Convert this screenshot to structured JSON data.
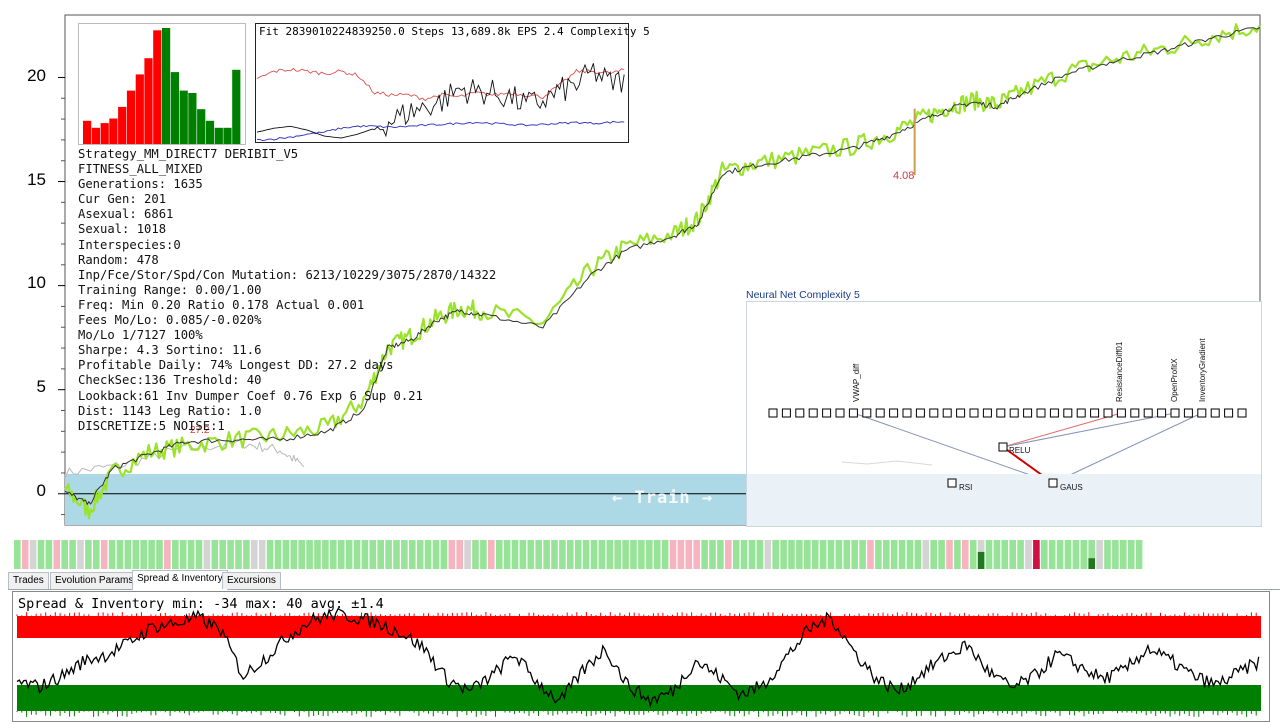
{
  "chart_data": [
    {
      "type": "line",
      "ylim": [
        -1.5,
        23
      ],
      "yticks": [
        "20",
        "15",
        "10",
        "5",
        "0"
      ],
      "ytick_values": [
        20,
        15,
        10,
        5,
        0
      ],
      "series": [
        {
          "color": "#9be22c",
          "x": [
            0,
            2,
            4,
            7,
            10,
            14,
            18,
            22,
            25,
            27,
            29,
            31,
            33,
            35,
            40,
            44,
            47,
            51,
            53,
            55,
            58,
            62,
            66,
            69,
            72,
            74,
            76,
            78,
            80,
            84,
            88,
            92,
            96,
            100
          ],
          "y": [
            0.2,
            -0.8,
            1.0,
            2.0,
            2.3,
            2.6,
            2.8,
            3.2,
            4.5,
            7.0,
            7.6,
            8.4,
            8.9,
            8.8,
            8.2,
            10.8,
            11.9,
            12.5,
            13.2,
            15.5,
            15.9,
            16.3,
            16.7,
            17.3,
            18.1,
            18.6,
            18.9,
            18.7,
            19.3,
            20.3,
            20.9,
            21.4,
            22.0,
            22.5
          ]
        },
        {
          "color": "#333333",
          "x": [
            0,
            2,
            4,
            7,
            10,
            14,
            18,
            22,
            25,
            27,
            29,
            31,
            33,
            35,
            40,
            44,
            47,
            51,
            53,
            55,
            58,
            62,
            66,
            69,
            72,
            74,
            76,
            78,
            80,
            84,
            88,
            92,
            96,
            100
          ],
          "y": [
            0.1,
            -0.5,
            1.2,
            1.9,
            2.5,
            2.6,
            2.6,
            3.0,
            4.0,
            7.0,
            7.4,
            8.3,
            8.8,
            8.6,
            8.0,
            10.5,
            11.7,
            12.4,
            13.0,
            15.4,
            15.8,
            16.2,
            16.6,
            17.2,
            18.0,
            18.5,
            18.8,
            18.6,
            19.2,
            20.2,
            20.8,
            21.3,
            21.9,
            22.4
          ]
        },
        {
          "color": "#b8b8b8",
          "x": [
            0,
            5,
            10,
            15,
            18,
            20
          ],
          "y": [
            1.0,
            1.4,
            2.2,
            2.4,
            2.1,
            1.3
          ]
        }
      ]
    },
    {
      "type": "bar",
      "values": [
        0.2,
        0.14,
        0.18,
        0.22,
        0.32,
        0.46,
        0.6,
        0.74,
        0.98,
        1.0,
        0.62,
        0.46,
        0.44,
        0.3,
        0.2,
        0.14,
        0.14,
        0.64
      ],
      "colors": [
        "#ff0000",
        "#ff0000",
        "#ff0000",
        "#ff0000",
        "#ff0000",
        "#ff0000",
        "#ff0000",
        "#ff0000",
        "#ff0000",
        "#008000",
        "#008000",
        "#008000",
        "#008000",
        "#008000",
        "#008000",
        "#008000",
        "#008000",
        "#008000"
      ]
    },
    {
      "type": "line",
      "title": "Fit 2839010224839250.0 Steps 13,689.8k EPS 2.4 Complexity 5",
      "series": [
        {
          "color": "#d9534f",
          "y": [
            0.62,
            0.7,
            0.72,
            0.7,
            0.68,
            0.7,
            0.66,
            0.48,
            0.46,
            0.46,
            0.42,
            0.46,
            0.44,
            0.48,
            0.46,
            0.48,
            0.46,
            0.44,
            0.56,
            0.7,
            0.7,
            0.68,
            0.72
          ]
        },
        {
          "color": "#111111",
          "y": [
            0.08,
            0.12,
            0.14,
            0.1,
            0.04,
            0.02,
            0.06,
            0.12,
            0.2,
            0.28,
            0.34,
            0.4,
            0.52,
            0.5,
            0.48,
            0.44,
            0.36,
            0.4,
            0.5,
            0.56,
            0.7,
            0.58,
            0.62
          ]
        },
        {
          "color": "#2b2bbf",
          "y": [
            0.0,
            0.01,
            0.03,
            0.06,
            0.08,
            0.12,
            0.14,
            0.14,
            0.13,
            0.14,
            0.15,
            0.16,
            0.17,
            0.18,
            0.17,
            0.16,
            0.15,
            0.16,
            0.17,
            0.18,
            0.17,
            0.18,
            0.19
          ]
        }
      ]
    },
    {
      "type": "line",
      "title": "Spread & Inventory min: -34 max: 40 avg: ±1.4",
      "ylim": [
        -34,
        40
      ],
      "series": [
        {
          "color": "#000000",
          "y": [
            -12,
            -15,
            -8,
            2,
            6,
            14,
            24,
            26,
            30,
            22,
            -8,
            4,
            18,
            28,
            32,
            30,
            26,
            20,
            10,
            -10,
            -18,
            -8,
            6,
            -12,
            -25,
            -5,
            10,
            -14,
            -24,
            -18,
            2,
            -8,
            -20,
            -14,
            4,
            22,
            30,
            8,
            -10,
            -18,
            -6,
            4,
            12,
            -6,
            -16,
            -8,
            6,
            -2,
            -10,
            -4,
            10,
            2,
            -8,
            -14,
            -6,
            2
          ]
        }
      ]
    }
  ],
  "annotations": {
    "spike_value": "4.08",
    "marker_value": "27.2"
  },
  "train_label": "← Train →",
  "stats": [
    "Strategy_MM_DIRECT7 DERIBIT_V5",
    "FITNESS_ALL_MIXED",
    "Generations: 1635",
    "Cur Gen: 201",
    "Asexual: 6861",
    "Sexual: 1018",
    "Interspecies:0",
    "Random: 478",
    "Inp/Fce/Stor/Spd/Con Mutation: 6213/10229/3075/2870/14322",
    "Training Range: 0.00/1.00",
    "Freq: Min 0.20 Ratio 0.178 Actual 0.001",
    "Fees Mo/Lo: 0.085/-0.020%",
    "Mo/Lo 1/7127 100%",
    "Sharpe: 4.3 Sortino: 11.6",
    "Profitable Daily: 74% Longest DD: 27.2 days",
    "CheckSec:136 Treshold: 40",
    "Lookback:61 Inv Dumper Coef 0.76 Exp 6 Sup 0.21",
    "Dist: 1143 Leg Ratio: 1.0",
    "DISCRETIZE:5 NOISE:1"
  ],
  "neural_net": {
    "title": "Neural Net Complexity 5",
    "input_labels": [
      "VWAP_diff",
      "ResistanceDiff01",
      "OpenProfitX",
      "InventoryGradient"
    ],
    "hidden_nodes": [
      "RELU",
      "GAUS",
      "RSI"
    ]
  },
  "daily_bars": {
    "levels": [
      2,
      1,
      3,
      2,
      2,
      1,
      2,
      2,
      3,
      2,
      2,
      1,
      2,
      2,
      2,
      2,
      2,
      2,
      2,
      1,
      2,
      2,
      2,
      2,
      3,
      2,
      2,
      2,
      2,
      2,
      3,
      3,
      2,
      2,
      2,
      2,
      2,
      2,
      2,
      2,
      2,
      2,
      2,
      2,
      2,
      2,
      2,
      2,
      2,
      2,
      2,
      2,
      2,
      2,
      2,
      1,
      1,
      3,
      2,
      2,
      1,
      2,
      2,
      2,
      2,
      2,
      2,
      2,
      2,
      2,
      2,
      2,
      2,
      2,
      2,
      2,
      2,
      2,
      2,
      2,
      2,
      2,
      2,
      1,
      1,
      1,
      1,
      2,
      2,
      2,
      1,
      2,
      2,
      2,
      2,
      3,
      2,
      2,
      2,
      2,
      2,
      2,
      2,
      2,
      2,
      2,
      2,
      2,
      1,
      2,
      2,
      2,
      2,
      2,
      2,
      3,
      2,
      2,
      1,
      2,
      1,
      2,
      3,
      2,
      2,
      2,
      2,
      2,
      3,
      4,
      2,
      2,
      2,
      2,
      2,
      2,
      2,
      3,
      2,
      2,
      2,
      2,
      2
    ],
    "colors": {
      "profit": "#97e397",
      "loss": "#f6b3c0",
      "flat": "#d4d4d4",
      "strong_profit": "#1f7a1f",
      "strong_loss": "#d01040"
    }
  },
  "tabs": [
    {
      "label": "Trades",
      "active": false
    },
    {
      "label": "Evolution Params",
      "active": false
    },
    {
      "label": "Spread & Inventory",
      "active": true
    },
    {
      "label": "Excursions",
      "active": false
    }
  ]
}
